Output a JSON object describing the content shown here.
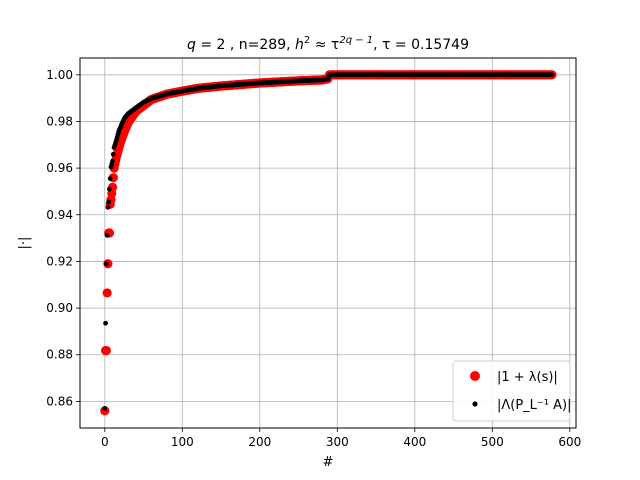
{
  "chart_data": {
    "type": "scatter",
    "title": {
      "prefix": "q",
      "rest1": " = 2 , n=289, ",
      "h": "h",
      "sup2": "2",
      "approx": " ≈ τ",
      "exp": "2q − 1",
      "rest2": ", τ = 0.15749"
    },
    "xlabel": "#",
    "ylabel": "|·|",
    "xlim": [
      -32,
      608
    ],
    "ylim": [
      0.8486,
      1.0072
    ],
    "x_ticks": [
      0,
      100,
      200,
      300,
      400,
      500,
      600
    ],
    "x_tick_labels": [
      "0",
      "100",
      "200",
      "300",
      "400",
      "500",
      "600"
    ],
    "y_ticks": [
      0.86,
      0.88,
      0.9,
      0.92,
      0.94,
      0.96,
      0.98,
      1.0
    ],
    "y_tick_labels": [
      "0.86",
      "0.88",
      "0.90",
      "0.92",
      "0.94",
      "0.96",
      "0.98",
      "1.00"
    ],
    "grid": true,
    "legend_position": "lower-right",
    "colors": {
      "series1": "#ff0000",
      "series2": "#000000",
      "grid": "#b0b0b0"
    },
    "series": [
      {
        "name": "|1 + λ(s)|",
        "marker": "large-circle",
        "color": "#ff0000",
        "anchor_x": [
          0,
          1,
          2,
          3,
          4,
          5,
          6,
          7,
          8,
          10,
          12,
          15,
          20,
          25,
          30,
          40,
          50,
          60,
          80,
          100,
          120,
          150,
          200,
          250,
          280,
          288,
          290,
          300,
          400,
          500,
          577
        ],
        "anchor_y": [
          0.856,
          0.8818,
          0.8818,
          0.9065,
          0.919,
          0.9322,
          0.9322,
          0.9445,
          0.9465,
          0.9518,
          0.96,
          0.9648,
          0.9708,
          0.9755,
          0.9794,
          0.9843,
          0.9868,
          0.9894,
          0.9917,
          0.993,
          0.9942,
          0.9952,
          0.9965,
          0.9974,
          0.9978,
          0.9983,
          1.0,
          1.0,
          1.0,
          1.0,
          1.0
        ],
        "count": 578
      },
      {
        "name": "|Λ(P_L⁻¹ A)|",
        "marker": "small-dot",
        "color": "#000000",
        "anchor_x": [
          0,
          1,
          2,
          3,
          4,
          5,
          6,
          7,
          8,
          10,
          12,
          15,
          18,
          22,
          26,
          30,
          40,
          50,
          60,
          80,
          100,
          120,
          150,
          200,
          250,
          280,
          288,
          290,
          300,
          400,
          500,
          577
        ],
        "anchor_y": [
          0.857,
          0.8935,
          0.919,
          0.9312,
          0.9432,
          0.9455,
          0.951,
          0.9555,
          0.9605,
          0.963,
          0.9688,
          0.972,
          0.9757,
          0.979,
          0.9817,
          0.9833,
          0.9858,
          0.9882,
          0.9898,
          0.9918,
          0.993,
          0.9942,
          0.9953,
          0.9965,
          0.9974,
          0.9978,
          0.9983,
          1.0,
          1.0,
          1.0,
          1.0,
          1.0
        ],
        "count": 578
      }
    ]
  }
}
